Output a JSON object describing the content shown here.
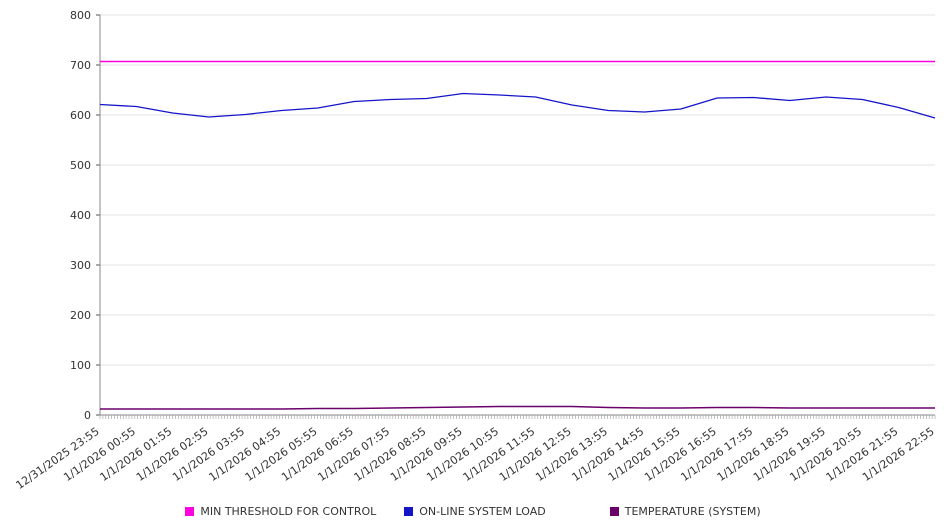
{
  "chart_data": {
    "type": "line",
    "title": "",
    "xlabel": "",
    "ylabel": "",
    "ylim": [
      0,
      800
    ],
    "yticks": [
      0,
      100,
      200,
      300,
      400,
      500,
      600,
      700,
      800
    ],
    "grid": true,
    "legend_position": "bottom",
    "x": [
      "12/31/2025 23:55",
      "1/1/2026 00:55",
      "1/1/2026 01:55",
      "1/1/2026 02:55",
      "1/1/2026 03:55",
      "1/1/2026 04:55",
      "1/1/2026 05:55",
      "1/1/2026 06:55",
      "1/1/2026 07:55",
      "1/1/2026 08:55",
      "1/1/2026 09:55",
      "1/1/2026 10:55",
      "1/1/2026 11:55",
      "1/1/2026 12:55",
      "1/1/2026 13:55",
      "1/1/2026 14:55",
      "1/1/2026 15:55",
      "1/1/2026 16:55",
      "1/1/2026 17:55",
      "1/1/2026 18:55",
      "1/1/2026 19:55",
      "1/1/2026 20:55",
      "1/1/2026 21:55",
      "1/1/2026 22:55"
    ],
    "series": [
      {
        "name": "MIN THRESHOLD FOR CONTROL",
        "color": "#ff00e0",
        "width": 1.6,
        "values": [
          707,
          707,
          707,
          707,
          707,
          707,
          707,
          707,
          707,
          707,
          707,
          707,
          707,
          707,
          707,
          707,
          707,
          707,
          707,
          707,
          707,
          707,
          707,
          707
        ]
      },
      {
        "name": "ON-LINE SYSTEM LOAD",
        "color": "#1515c8",
        "width": 1.3,
        "values": [
          621,
          617,
          604,
          596,
          601,
          609,
          614,
          627,
          631,
          633,
          643,
          640,
          636,
          620,
          609,
          606,
          612,
          634,
          635,
          629,
          636,
          631,
          615,
          594
        ]
      },
      {
        "name": "TEMPERATURE (SYSTEM)",
        "color": "#6b006b",
        "width": 1.6,
        "values": [
          12,
          12,
          12,
          12,
          12,
          12,
          13,
          13,
          14,
          15,
          16,
          17,
          17,
          17,
          15,
          14,
          14,
          15,
          15,
          14,
          14,
          14,
          14,
          14
        ]
      }
    ]
  }
}
